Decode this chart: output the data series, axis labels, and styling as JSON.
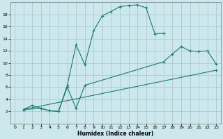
{
  "xlabel": "Humidex (Indice chaleur)",
  "xlim": [
    -0.5,
    23.5
  ],
  "ylim": [
    0,
    20
  ],
  "xticks": [
    0,
    1,
    2,
    3,
    4,
    5,
    6,
    7,
    8,
    9,
    10,
    11,
    12,
    13,
    14,
    15,
    16,
    17,
    18,
    19,
    20,
    21,
    22,
    23
  ],
  "yticks": [
    2,
    4,
    6,
    8,
    10,
    12,
    14,
    16,
    18
  ],
  "bg_color": "#cce8ed",
  "grid_color": "#aac8ce",
  "line_color": "#1a7a6e",
  "line1_x": [
    1,
    2,
    3,
    4,
    5,
    6,
    7,
    8,
    9,
    10,
    11,
    12,
    13,
    14,
    15,
    16,
    17
  ],
  "line1_y": [
    2.3,
    3.0,
    2.5,
    2.1,
    2.0,
    6.3,
    13.0,
    9.7,
    15.3,
    17.8,
    18.5,
    19.3,
    19.5,
    19.6,
    19.1,
    14.8,
    14.9
  ],
  "line2_x": [
    1,
    3,
    4,
    5,
    6,
    7,
    8,
    17,
    18,
    19,
    20,
    21,
    22,
    23
  ],
  "line2_y": [
    2.3,
    2.5,
    2.1,
    2.0,
    6.0,
    2.5,
    6.3,
    10.2,
    11.5,
    12.7,
    12.0,
    11.9,
    12.0,
    9.8
  ],
  "line3_x": [
    1,
    23
  ],
  "line3_y": [
    2.3,
    8.8
  ]
}
